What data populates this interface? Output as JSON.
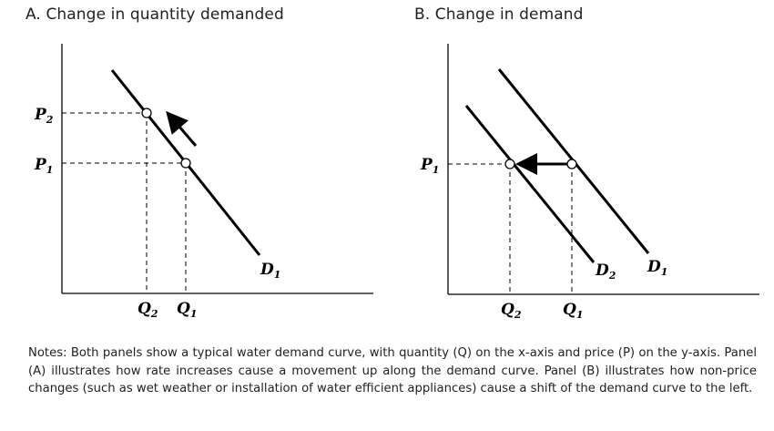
{
  "panels": {
    "a": {
      "title": "A. Change in quantity demanded",
      "curve_label": "D",
      "curve_sub": "1",
      "p2": {
        "main": "P",
        "sub": "2"
      },
      "p1": {
        "main": "P",
        "sub": "1"
      },
      "q2": {
        "main": "Q",
        "sub": "2"
      },
      "q1": {
        "main": "Q",
        "sub": "1"
      }
    },
    "b": {
      "title": "B. Change in demand",
      "curve_d2": {
        "main": "D",
        "sub": "2"
      },
      "curve_d1": {
        "main": "D",
        "sub": "1"
      },
      "p1": {
        "main": "P",
        "sub": "1"
      },
      "q2": {
        "main": "Q",
        "sub": "2"
      },
      "q1": {
        "main": "Q",
        "sub": "1"
      }
    }
  },
  "notes": "Notes: Both panels show a typical water demand curve, with quantity (Q) on the x-axis and price (P) on the y-axis. Panel (A) illustrates how rate increases cause a movement up along the demand curve. Panel (B) illustrates how non-price changes (such as wet weather or installation of water efficient appliances) cause a shift of the demand curve to the left."
}
